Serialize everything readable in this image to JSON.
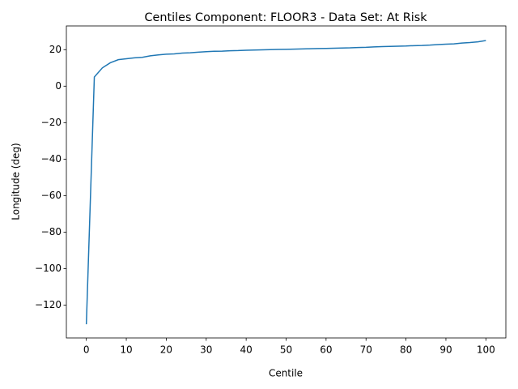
{
  "chart_data": {
    "type": "line",
    "title": "Centiles Component: FLOOR3 - Data Set: At Risk",
    "x_label": "Centile",
    "y_label": "Longitude (deg)",
    "x": [
      0,
      2,
      4,
      6,
      8,
      10,
      12,
      14,
      16,
      18,
      20,
      22,
      24,
      26,
      28,
      30,
      32,
      34,
      36,
      38,
      40,
      42,
      44,
      46,
      48,
      50,
      52,
      54,
      56,
      58,
      60,
      62,
      64,
      66,
      68,
      70,
      72,
      74,
      76,
      78,
      80,
      82,
      84,
      86,
      88,
      90,
      92,
      94,
      96,
      98,
      100
    ],
    "series": [
      {
        "color": "#1f77b4",
        "values": [
          -130.5,
          5,
          10,
          12.8,
          14.5,
          15,
          15.5,
          15.8,
          16.6,
          17.1,
          17.5,
          17.7,
          18.1,
          18.3,
          18.6,
          18.9,
          19.1,
          19.2,
          19.4,
          19.5,
          19.7,
          19.8,
          19.9,
          20,
          20.1,
          20.2,
          20.3,
          20.4,
          20.5,
          20.6,
          20.7,
          20.8,
          20.9,
          21,
          21.2,
          21.3,
          21.5,
          21.7,
          21.8,
          21.9,
          22,
          22.2,
          22.3,
          22.5,
          22.8,
          23,
          23.2,
          23.6,
          23.9,
          24.3,
          25
        ]
      }
    ],
    "xlim": [
      -5,
      105
    ],
    "ylim": [
      -138,
      33
    ],
    "xticks": [
      0,
      10,
      20,
      30,
      40,
      50,
      60,
      70,
      80,
      90,
      100
    ],
    "yticks": [
      {
        "value": -120,
        "label": "−120"
      },
      {
        "value": -100,
        "label": "−100"
      },
      {
        "value": -80,
        "label": "−80"
      },
      {
        "value": -60,
        "label": "−60"
      },
      {
        "value": -40,
        "label": "−40"
      },
      {
        "value": -20,
        "label": "−20"
      },
      0,
      20
    ]
  }
}
